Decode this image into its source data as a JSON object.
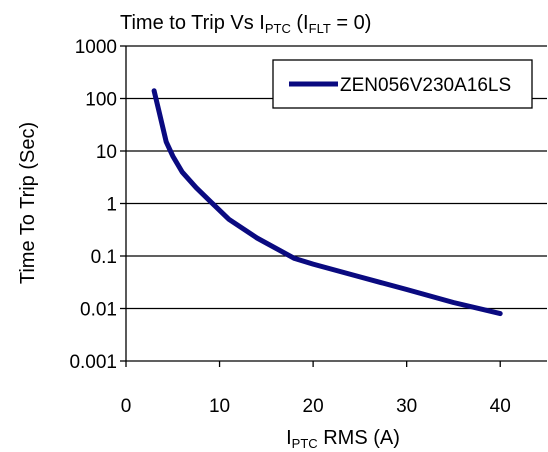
{
  "chart_data": {
    "type": "line",
    "title": {
      "parts": [
        {
          "text": "Time to Trip Vs I",
          "sub": false
        },
        {
          "text": "PTC",
          "sub": true
        },
        {
          "text": " (I",
          "sub": false
        },
        {
          "text": "FLT",
          "sub": true
        },
        {
          "text": " = 0)",
          "sub": false
        }
      ]
    },
    "xlabel": {
      "parts": [
        {
          "text": "I",
          "sub": false
        },
        {
          "text": "PTC",
          "sub": true
        },
        {
          "text": " RMS (A)",
          "sub": false
        }
      ]
    },
    "ylabel": "Time To Trip (Sec)",
    "x_scale": "linear",
    "y_scale": "log",
    "xlim": [
      0,
      45
    ],
    "ylim": [
      0.001,
      1000
    ],
    "x_ticks": [
      0,
      10,
      20,
      30,
      40
    ],
    "x_tick_labels": [
      "0",
      "10",
      "20",
      "30",
      "40"
    ],
    "y_ticks": [
      0.001,
      0.01,
      0.1,
      1,
      10,
      100,
      1000
    ],
    "y_tick_labels": [
      "0.001",
      "0.01",
      "0.1",
      "1",
      "10",
      "100",
      "1000"
    ],
    "grid": {
      "horizontal": true,
      "vertical": false
    },
    "legend_position": "top-right",
    "series": [
      {
        "name": "ZEN056V230A16LS",
        "color": "#0a0a80",
        "x": [
          3.0,
          3.5,
          4.3,
          5.0,
          6.0,
          7.5,
          9.0,
          11.0,
          14.0,
          18.0,
          20.0,
          25.0,
          30.0,
          35.0,
          40.0
        ],
        "y": [
          140,
          60,
          15,
          8,
          4,
          2.0,
          1.1,
          0.5,
          0.22,
          0.09,
          0.07,
          0.04,
          0.023,
          0.013,
          0.008
        ]
      }
    ]
  }
}
